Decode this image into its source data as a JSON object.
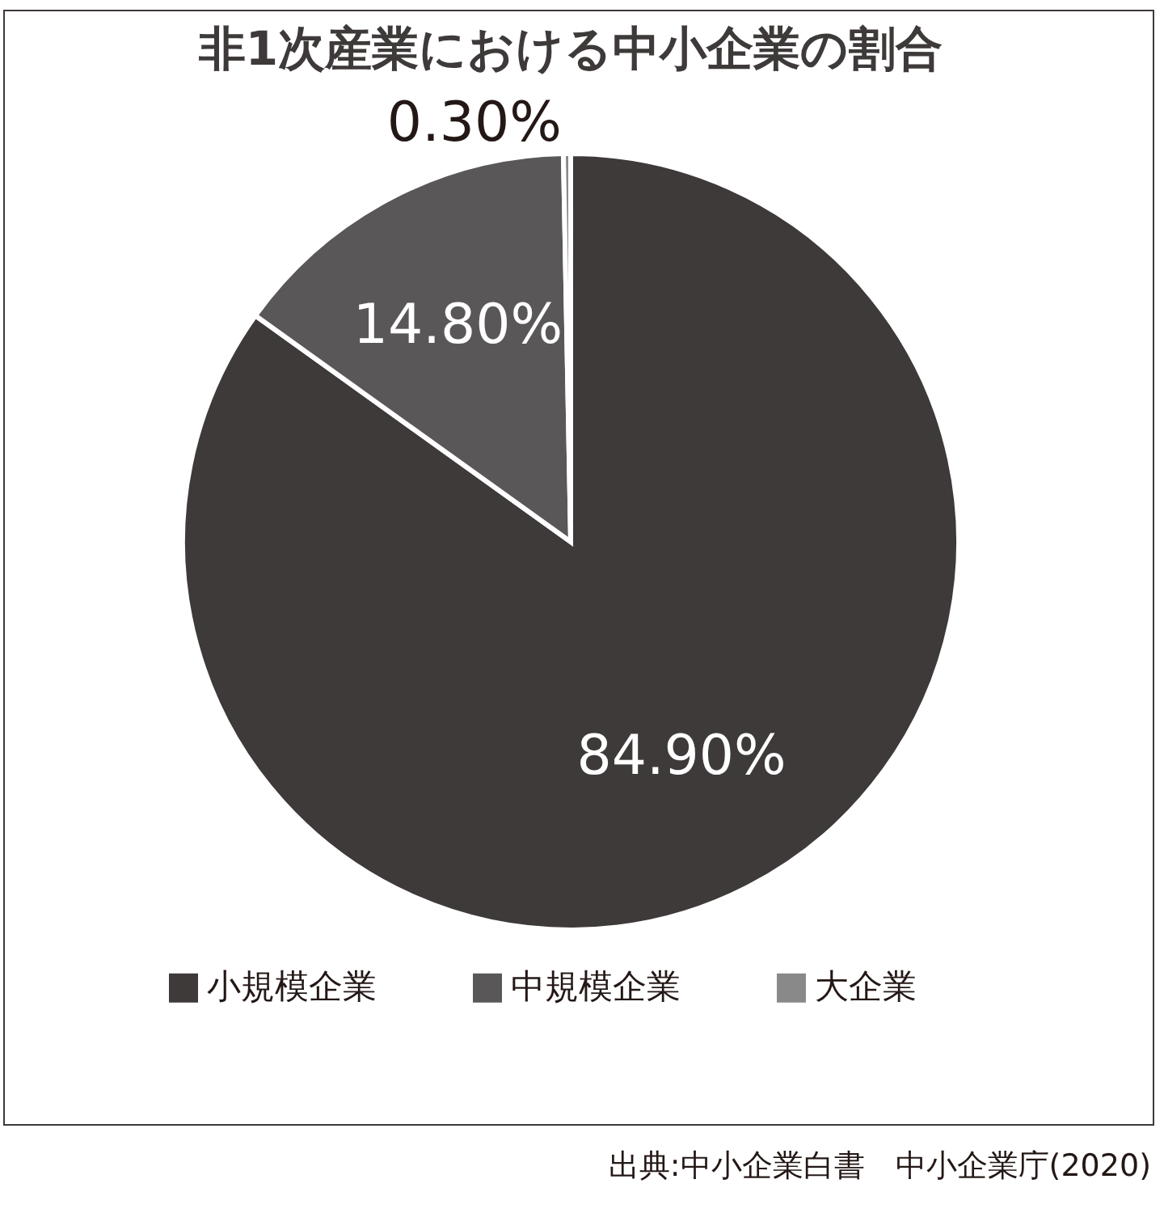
{
  "chart_data": {
    "type": "pie",
    "title": "非1次産業における中小企業の割合",
    "categories": [
      "小規模企業",
      "中規模企業",
      "大企業"
    ],
    "values": [
      84.9,
      14.8,
      0.3
    ],
    "colors": [
      "#3e3a39",
      "#595757",
      "#898989"
    ],
    "value_labels": [
      "84.90%",
      "14.80%",
      "0.30%"
    ],
    "legend": "bottom",
    "annotations": [
      "出典:中小企業白書　中小企業庁(2020)"
    ]
  }
}
